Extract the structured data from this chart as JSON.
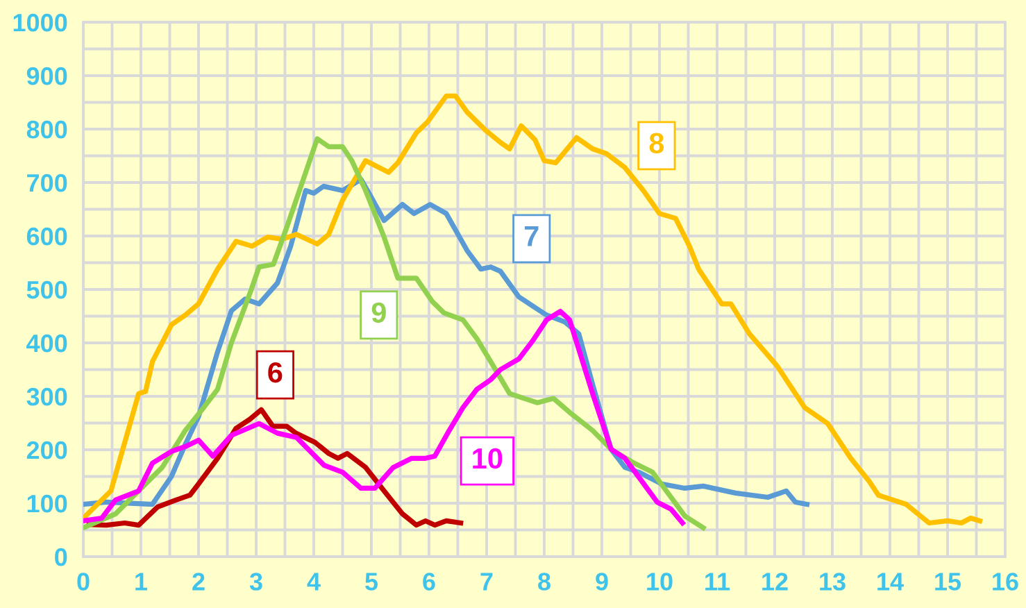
{
  "chart_data": {
    "type": "line",
    "xlim": [
      0,
      16
    ],
    "ylim": [
      0,
      1000
    ],
    "xticks": [
      0,
      1,
      2,
      3,
      4,
      5,
      6,
      7,
      8,
      9,
      10,
      11,
      12,
      13,
      14,
      15,
      16
    ],
    "yticks": [
      0,
      100,
      200,
      300,
      400,
      500,
      600,
      700,
      800,
      900,
      1000
    ],
    "grid": true,
    "legend": false,
    "marker": "none",
    "line_style": "solid",
    "series": [
      {
        "name": "6",
        "color": "#c00000",
        "x": [
          0.1,
          0.4,
          0.72,
          0.96,
          1.29,
          1.61,
          1.85,
          2.0,
          2.33,
          2.65,
          2.89,
          3.09,
          3.29,
          3.53,
          3.69,
          4.02,
          4.26,
          4.42,
          4.58,
          4.9,
          5.22,
          5.54,
          5.78,
          5.94,
          6.1,
          6.3,
          6.55
        ],
        "values": [
          60,
          59,
          63,
          59,
          93,
          106,
          115,
          136,
          184,
          240,
          257,
          275,
          244,
          244,
          231,
          214,
          193,
          184,
          193,
          167,
          123,
          80,
          59,
          67,
          59,
          67,
          63
        ]
      },
      {
        "name": "7",
        "color": "#5b9bd5",
        "x": [
          0,
          0.4,
          1.2,
          1.53,
          1.77,
          2.0,
          2.33,
          2.57,
          2.81,
          3.05,
          3.37,
          3.6,
          3.86,
          4.0,
          4.17,
          4.5,
          4.82,
          4.98,
          5.22,
          5.54,
          5.74,
          6.02,
          6.3,
          6.66,
          6.9,
          7.07,
          7.24,
          7.56,
          8.04,
          8.36,
          8.6,
          8.84,
          9.16,
          9.4,
          9.64,
          10.04,
          10.44,
          10.76,
          11.32,
          11.88,
          12.2,
          12.36,
          12.56
        ],
        "values": [
          98,
          102,
          98,
          150,
          210,
          262,
          383,
          460,
          482,
          473,
          512,
          581,
          685,
          680,
          693,
          685,
          706,
          676,
          629,
          659,
          642,
          659,
          642,
          573,
          538,
          542,
          534,
          486,
          452,
          439,
          417,
          322,
          201,
          167,
          158,
          136,
          128,
          132,
          119,
          111,
          123,
          102,
          98
        ]
      },
      {
        "name": "8",
        "color": "#ffc000",
        "x": [
          0,
          0.48,
          0.96,
          1.08,
          1.2,
          1.53,
          1.77,
          2.0,
          2.33,
          2.65,
          2.93,
          3.2,
          3.45,
          3.7,
          4.06,
          4.26,
          4.5,
          4.9,
          5.3,
          5.46,
          5.78,
          5.98,
          6.3,
          6.46,
          6.66,
          6.99,
          7.24,
          7.4,
          7.6,
          7.84,
          8.0,
          8.2,
          8.56,
          8.84,
          9.08,
          9.4,
          9.72,
          10.0,
          10.28,
          10.52,
          10.68,
          11.08,
          11.24,
          11.56,
          12.04,
          12.52,
          12.92,
          13.32,
          13.64,
          13.8,
          14.28,
          14.68,
          15.0,
          15.24,
          15.4,
          15.56
        ],
        "values": [
          72,
          123,
          305,
          309,
          365,
          434,
          452,
          473,
          538,
          590,
          581,
          598,
          594,
          603,
          585,
          603,
          667,
          741,
          719,
          737,
          793,
          814,
          862,
          862,
          832,
          797,
          775,
          763,
          806,
          780,
          741,
          737,
          784,
          763,
          754,
          728,
          685,
          642,
          633,
          581,
          538,
          473,
          473,
          417,
          357,
          279,
          249,
          184,
          141,
          115,
          98,
          63,
          67,
          63,
          72,
          67
        ]
      },
      {
        "name": "9",
        "color": "#92d050",
        "x": [
          0,
          0.56,
          0.96,
          1.37,
          1.77,
          2.09,
          2.33,
          2.57,
          2.9,
          3.05,
          3.3,
          3.53,
          3.86,
          4.06,
          4.26,
          4.5,
          4.66,
          4.9,
          5.22,
          5.46,
          5.78,
          6.06,
          6.26,
          6.59,
          6.83,
          7.07,
          7.4,
          7.88,
          8.16,
          8.44,
          8.84,
          9.16,
          9.56,
          9.88,
          10.12,
          10.44,
          10.76
        ],
        "values": [
          54,
          80,
          123,
          167,
          236,
          279,
          313,
          400,
          495,
          542,
          547,
          616,
          719,
          782,
          767,
          767,
          741,
          685,
          598,
          521,
          521,
          477,
          456,
          443,
          408,
          365,
          305,
          288,
          296,
          270,
          236,
          201,
          175,
          158,
          123,
          76,
          54
        ]
      },
      {
        "name": "10",
        "color": "#ff00ff",
        "x": [
          0,
          0.32,
          0.56,
          0.96,
          1.2,
          1.53,
          1.77,
          2.0,
          2.25,
          2.57,
          3.05,
          3.37,
          3.7,
          4.18,
          4.5,
          4.82,
          5.06,
          5.38,
          5.7,
          5.94,
          6.1,
          6.35,
          6.59,
          6.83,
          7.07,
          7.24,
          7.56,
          7.8,
          8.04,
          8.28,
          8.44,
          8.84,
          9.16,
          9.4,
          9.64,
          9.96,
          10.2,
          10.4
        ],
        "values": [
          67,
          72,
          106,
          123,
          175,
          197,
          206,
          218,
          188,
          227,
          249,
          231,
          223,
          171,
          158,
          128,
          128,
          167,
          184,
          184,
          188,
          236,
          279,
          313,
          331,
          350,
          370,
          404,
          443,
          459,
          443,
          305,
          201,
          184,
          149,
          102,
          89,
          63
        ]
      }
    ]
  }
}
